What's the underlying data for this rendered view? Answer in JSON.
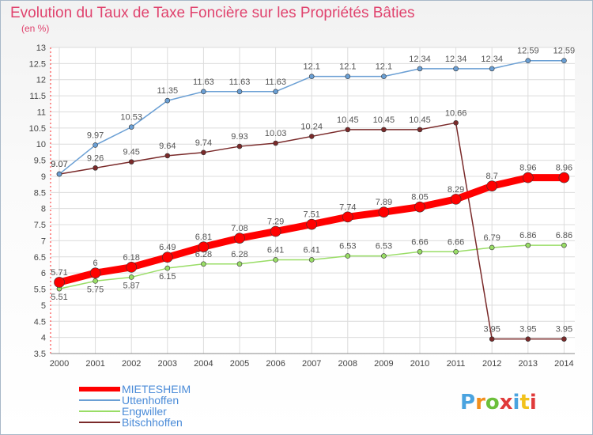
{
  "chart_data": {
    "type": "line",
    "title": "Evolution du Taux de Taxe Foncière sur les Propriétés Bâties",
    "subtitle": "(en %)",
    "xlabel": "",
    "ylabel": "(en %)",
    "categories": [
      "2000",
      "2001",
      "2002",
      "2003",
      "2004",
      "2005",
      "2006",
      "2007",
      "2008",
      "2009",
      "2010",
      "2011",
      "2012",
      "2013",
      "2014"
    ],
    "yticks": [
      "3.5",
      "4",
      "4.5",
      "5",
      "5.5",
      "6",
      "6.5",
      "7",
      "7.5",
      "8",
      "8.5",
      "9",
      "9.5",
      "10",
      "10.5",
      "11",
      "11.5",
      "12",
      "12.5",
      "13"
    ],
    "ylim": [
      3.5,
      13
    ],
    "legend_position": "bottom-left",
    "series": [
      {
        "name": "MIETESHEIM",
        "color": "#ff0000",
        "labels": [
          "5.71",
          "6",
          "6.18",
          "6.49",
          "6.81",
          "7.08",
          "7.29",
          "7.51",
          "7.74",
          "7.89",
          "8.05",
          "8.29",
          "8.7",
          "8.96",
          "8.96"
        ],
        "values": [
          5.71,
          6,
          6.18,
          6.49,
          6.81,
          7.08,
          7.29,
          7.51,
          7.74,
          7.89,
          8.05,
          8.29,
          8.7,
          8.96,
          8.96
        ]
      },
      {
        "name": "Uttenhoffen",
        "color": "#6a9fd4",
        "labels": [
          "9.07",
          "9.97",
          "10.53",
          "11.35",
          "11.63",
          "11.63",
          "11.63",
          "12.1",
          "12.1",
          "12.1",
          "12.34",
          "12.34",
          "12.34",
          "12.59",
          "12.59"
        ],
        "values": [
          9.07,
          9.97,
          10.53,
          11.35,
          11.63,
          11.63,
          11.63,
          12.1,
          12.1,
          12.1,
          12.34,
          12.34,
          12.34,
          12.59,
          12.59
        ]
      },
      {
        "name": "Engwiller",
        "color": "#99dd66",
        "labels": [
          "5.51",
          "5.75",
          "5.87",
          "6.15",
          "6.28",
          "6.28",
          "6.41",
          "6.41",
          "6.53",
          "6.53",
          "6.66",
          "6.66",
          "6.79",
          "6.86",
          "6.86"
        ],
        "values": [
          5.51,
          5.75,
          5.87,
          6.15,
          6.28,
          6.28,
          6.41,
          6.41,
          6.53,
          6.53,
          6.66,
          6.66,
          6.79,
          6.86,
          6.86
        ]
      },
      {
        "name": "Bitschhoffen",
        "color": "#7a2a2a",
        "labels": [
          "9.07",
          "9.26",
          "9.45",
          "9.64",
          "9.74",
          "9.93",
          "10.03",
          "10.24",
          "10.45",
          "10.45",
          "10.45",
          "10.66",
          "3.95",
          "3.95",
          "3.95"
        ],
        "values": [
          9.07,
          9.26,
          9.45,
          9.64,
          9.74,
          9.93,
          10.03,
          10.24,
          10.45,
          10.45,
          10.45,
          10.66,
          3.95,
          3.95,
          3.95
        ]
      }
    ]
  },
  "brand": "Proxiti"
}
